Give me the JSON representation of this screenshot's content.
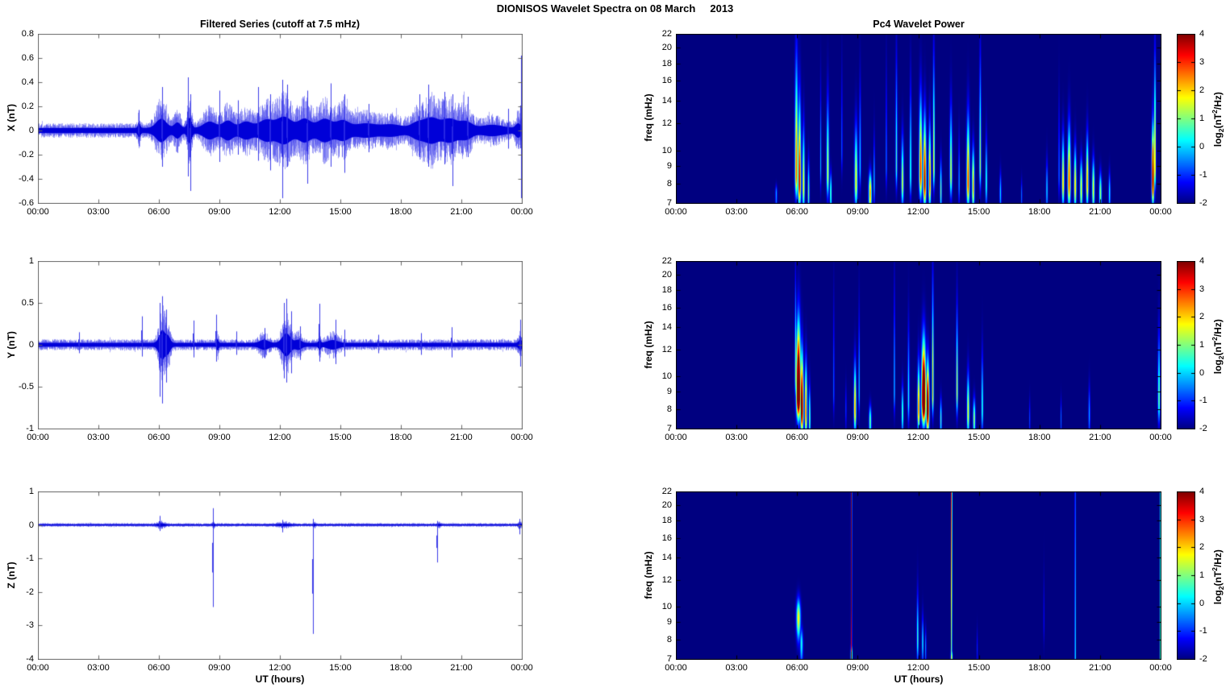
{
  "title": "DIONISOS Wavelet Spectra on 08 March     2013",
  "columns": {
    "left_title": "Filtered Series (cutoff at 7.5 mHz)",
    "right_title": "Pc4 Wavelet Power"
  },
  "xlabel": "UT (hours)",
  "x_tick_labels": [
    "00:00",
    "03:00",
    "06:00",
    "09:00",
    "12:00",
    "15:00",
    "18:00",
    "21:00",
    "00:00"
  ],
  "colorbar": {
    "ticks": [
      4,
      3,
      2,
      1,
      0,
      -1,
      -2
    ],
    "clim": [
      -2,
      4
    ],
    "colormap": "jet",
    "label_parts": {
      "pre": "log",
      "sub": "2",
      "mid": "(nT",
      "sup": "2",
      "post": "/Hz)"
    },
    "label_plain": "log2(nT^2/Hz)"
  },
  "palette": {
    "trace_blue": "#0000dd",
    "spectrogram_background": "#000080",
    "axis_gray": "#666666"
  },
  "chart_data": [
    {
      "type": "line",
      "position": "row1-left",
      "title": "Filtered Series (cutoff at 7.5 mHz)",
      "ylabel": "X (nT)",
      "ylim": [
        -0.6,
        0.8
      ],
      "yticks": [
        0.8,
        0.6,
        0.4,
        0.2,
        0,
        -0.2,
        -0.4,
        -0.6
      ],
      "xlim_hours": [
        0,
        24
      ],
      "noise_base_nT": 0.055,
      "bursts_t_sigma_amp": [
        [
          5.0,
          0.06,
          0.1
        ],
        [
          6.1,
          0.25,
          0.2
        ],
        [
          6.9,
          0.15,
          0.12
        ],
        [
          7.5,
          0.1,
          0.22
        ],
        [
          8.5,
          0.3,
          0.14
        ],
        [
          9.4,
          0.25,
          0.16
        ],
        [
          10.3,
          0.3,
          0.14
        ],
        [
          11.3,
          0.35,
          0.18
        ],
        [
          12.2,
          0.35,
          0.24
        ],
        [
          13.2,
          0.3,
          0.2
        ],
        [
          14.2,
          0.35,
          0.2
        ],
        [
          15.1,
          0.3,
          0.16
        ],
        [
          16.2,
          0.5,
          0.1
        ],
        [
          17.5,
          0.5,
          0.08
        ],
        [
          18.8,
          0.3,
          0.12
        ],
        [
          19.5,
          0.35,
          0.22
        ],
        [
          20.4,
          0.35,
          0.2
        ],
        [
          21.2,
          0.3,
          0.14
        ],
        [
          22.5,
          0.5,
          0.07
        ],
        [
          23.8,
          0.12,
          0.1
        ]
      ],
      "spikes_t_up_down": [
        [
          5.0,
          0.17,
          -0.13
        ],
        [
          6.15,
          0.36,
          -0.3
        ],
        [
          7.45,
          0.44,
          -0.38
        ],
        [
          7.55,
          0.3,
          -0.5
        ],
        [
          9.0,
          0.33,
          -0.26
        ],
        [
          9.9,
          0.25,
          -0.2
        ],
        [
          10.9,
          0.36,
          -0.25
        ],
        [
          11.5,
          0.3,
          -0.33
        ],
        [
          12.1,
          0.42,
          -0.56
        ],
        [
          12.35,
          0.38,
          -0.3
        ],
        [
          13.35,
          0.33,
          -0.44
        ],
        [
          14.5,
          0.39,
          -0.3
        ],
        [
          15.2,
          0.3,
          -0.35
        ],
        [
          16.4,
          0.22,
          -0.18
        ],
        [
          18.9,
          0.3,
          -0.22
        ],
        [
          19.35,
          0.38,
          -0.3
        ],
        [
          20.15,
          0.32,
          -0.28
        ],
        [
          20.55,
          0.3,
          -0.46
        ],
        [
          21.3,
          0.28,
          -0.22
        ],
        [
          23.3,
          0.18,
          -0.15
        ],
        [
          23.95,
          0.62,
          -0.56
        ]
      ]
    },
    {
      "type": "line",
      "position": "row2-left",
      "ylabel": "Y (nT)",
      "ylim": [
        -1,
        1
      ],
      "yticks": [
        1,
        0.5,
        0,
        -0.5,
        -1
      ],
      "xlim_hours": [
        0,
        24
      ],
      "noise_base_nT": 0.06,
      "bursts_t_sigma_amp": [
        [
          6.15,
          0.15,
          0.4
        ],
        [
          6.45,
          0.1,
          0.18
        ],
        [
          8.9,
          0.04,
          0.12
        ],
        [
          11.2,
          0.2,
          0.1
        ],
        [
          12.3,
          0.2,
          0.3
        ],
        [
          12.9,
          0.15,
          0.1
        ],
        [
          13.95,
          0.05,
          0.12
        ],
        [
          14.6,
          0.25,
          0.09
        ],
        [
          23.9,
          0.08,
          0.1
        ]
      ],
      "spikes_t_up_down": [
        [
          2.05,
          0.15,
          -0.1
        ],
        [
          5.15,
          0.34,
          -0.14
        ],
        [
          6.05,
          0.5,
          -0.62
        ],
        [
          6.15,
          0.58,
          -0.7
        ],
        [
          6.35,
          0.42,
          -0.45
        ],
        [
          7.7,
          0.29,
          -0.15
        ],
        [
          8.85,
          0.36,
          -0.2
        ],
        [
          9.85,
          0.16,
          -0.12
        ],
        [
          11.25,
          0.2,
          -0.16
        ],
        [
          12.2,
          0.5,
          -0.4
        ],
        [
          12.3,
          0.55,
          -0.45
        ],
        [
          12.55,
          0.4,
          -0.34
        ],
        [
          13.0,
          0.22,
          -0.18
        ],
        [
          13.95,
          0.49,
          -0.2
        ],
        [
          14.75,
          0.3,
          -0.23
        ],
        [
          15.2,
          0.18,
          -0.14
        ],
        [
          16.9,
          0.12,
          -0.1
        ],
        [
          19.0,
          0.14,
          -0.12
        ],
        [
          20.5,
          0.21,
          -0.15
        ],
        [
          23.92,
          0.3,
          -0.26
        ]
      ]
    },
    {
      "type": "line",
      "position": "row3-left",
      "ylabel": "Z (nT)",
      "ylim": [
        -4,
        1
      ],
      "yticks": [
        1,
        0,
        -1,
        -2,
        -3,
        -4
      ],
      "xlim_hours": [
        0,
        24
      ],
      "noise_base_nT": 0.05,
      "bursts_t_sigma_amp": [
        [
          6.1,
          0.15,
          0.08
        ],
        [
          8.7,
          0.04,
          0.08
        ],
        [
          12.2,
          0.25,
          0.05
        ],
        [
          13.7,
          0.04,
          0.06
        ],
        [
          19.9,
          0.06,
          0.05
        ],
        [
          23.9,
          0.08,
          0.06
        ]
      ],
      "spikes_t_up_down": [
        [
          6.05,
          0.27,
          -0.18
        ],
        [
          8.68,
          0.5,
          -2.45
        ],
        [
          12.1,
          0.15,
          -0.22
        ],
        [
          13.65,
          0.18,
          -3.25
        ],
        [
          19.78,
          0.12,
          -1.12
        ],
        [
          23.9,
          0.18,
          -0.28
        ]
      ]
    },
    {
      "type": "heatmap",
      "position": "row1-right",
      "title": "Pc4 Wavelet Power",
      "ylabel": "freq (mHz)",
      "freq_range_mHz": [
        7,
        22
      ],
      "freq_scale": "log",
      "yticks": [
        22,
        20,
        18,
        16,
        14,
        12,
        10,
        9,
        8,
        7
      ],
      "clim_log2_power": [
        -2,
        4
      ],
      "events_t_sigma_ftop_fpeak_power": [
        [
          4.95,
          0.03,
          8,
          7.5,
          1.2
        ],
        [
          5.95,
          0.05,
          22,
          8.5,
          3.2
        ],
        [
          6.1,
          0.05,
          16,
          8.0,
          3.8
        ],
        [
          6.3,
          0.04,
          13,
          7.8,
          2.6
        ],
        [
          6.55,
          0.03,
          10,
          7.5,
          2.0
        ],
        [
          7.15,
          0.02,
          18,
          9,
          1.2
        ],
        [
          7.5,
          0.04,
          16,
          8.5,
          2.4
        ],
        [
          7.65,
          0.03,
          9,
          7.5,
          2.0
        ],
        [
          8.2,
          0.02,
          20,
          10,
          1.0
        ],
        [
          8.9,
          0.05,
          13,
          8,
          2.6
        ],
        [
          9.1,
          0.03,
          18,
          9,
          1.4
        ],
        [
          9.6,
          0.05,
          9,
          7.5,
          3.0
        ],
        [
          9.8,
          0.02,
          12,
          8,
          1.6
        ],
        [
          10.4,
          0.02,
          20,
          9,
          1.2
        ],
        [
          10.9,
          0.03,
          22,
          9,
          1.8
        ],
        [
          11.2,
          0.04,
          12,
          8,
          2.4
        ],
        [
          11.6,
          0.03,
          18,
          8.5,
          1.8
        ],
        [
          12.1,
          0.05,
          16,
          8.5,
          3.6
        ],
        [
          12.3,
          0.05,
          14,
          8,
          4.0
        ],
        [
          12.55,
          0.04,
          13,
          8,
          3.4
        ],
        [
          12.75,
          0.03,
          22,
          9,
          2.6
        ],
        [
          13.1,
          0.03,
          10,
          7.6,
          2.0
        ],
        [
          13.6,
          0.04,
          15,
          8.5,
          2.4
        ],
        [
          14.0,
          0.02,
          12,
          8,
          1.4
        ],
        [
          14.45,
          0.05,
          14,
          8,
          3.4
        ],
        [
          14.7,
          0.04,
          11,
          7.8,
          3.0
        ],
        [
          15.05,
          0.03,
          22,
          9,
          2.2
        ],
        [
          15.35,
          0.03,
          12,
          8,
          1.8
        ],
        [
          16.05,
          0.03,
          9,
          7.5,
          1.4
        ],
        [
          17.1,
          0.02,
          8.5,
          7.4,
          1.0
        ],
        [
          18.35,
          0.03,
          10,
          7.6,
          1.4
        ],
        [
          18.95,
          0.02,
          16,
          8.5,
          1.2
        ],
        [
          19.15,
          0.04,
          12,
          8,
          2.8
        ],
        [
          19.45,
          0.05,
          13,
          8,
          3.4
        ],
        [
          19.75,
          0.04,
          11,
          7.8,
          2.8
        ],
        [
          20.05,
          0.04,
          10,
          7.7,
          2.6
        ],
        [
          20.35,
          0.04,
          12,
          8,
          3.0
        ],
        [
          20.65,
          0.04,
          10,
          7.7,
          2.6
        ],
        [
          21.0,
          0.04,
          9,
          7.5,
          2.2
        ],
        [
          21.45,
          0.03,
          9,
          7.5,
          1.6
        ],
        [
          23.6,
          0.04,
          13,
          8.2,
          5.0
        ],
        [
          23.7,
          0.03,
          22,
          9,
          3.0
        ]
      ],
      "vertical_lines_t_sigma_vtop_vbot": []
    },
    {
      "type": "heatmap",
      "position": "row2-right",
      "ylabel": "freq (mHz)",
      "freq_range_mHz": [
        7,
        22
      ],
      "freq_scale": "log",
      "yticks": [
        22,
        20,
        18,
        16,
        14,
        12,
        10,
        9,
        8,
        7
      ],
      "clim_log2_power": [
        -2,
        4
      ],
      "events_t_sigma_ftop_fpeak_power": [
        [
          5.9,
          0.02,
          22,
          10,
          2.4
        ],
        [
          6.05,
          0.07,
          16,
          8.8,
          6.0
        ],
        [
          6.22,
          0.05,
          13,
          8,
          5.0
        ],
        [
          6.42,
          0.04,
          12,
          7.8,
          3.4
        ],
        [
          6.6,
          0.03,
          10,
          7.5,
          2.2
        ],
        [
          7.8,
          0.02,
          20,
          9,
          1.0
        ],
        [
          8.4,
          0.02,
          10,
          8,
          0.8
        ],
        [
          8.85,
          0.04,
          12,
          8,
          3.0
        ],
        [
          9.05,
          0.02,
          18,
          9,
          1.6
        ],
        [
          9.6,
          0.04,
          8.5,
          7.4,
          2.0
        ],
        [
          10.8,
          0.02,
          22,
          9,
          1.6
        ],
        [
          11.2,
          0.03,
          10,
          7.8,
          2.0
        ],
        [
          11.5,
          0.03,
          16,
          8.5,
          1.6
        ],
        [
          12.0,
          0.04,
          12,
          8,
          3.2
        ],
        [
          12.25,
          0.07,
          14,
          8.5,
          6.0
        ],
        [
          12.45,
          0.05,
          12,
          8,
          5.0
        ],
        [
          12.7,
          0.03,
          22,
          9,
          2.8
        ],
        [
          13.1,
          0.03,
          9,
          7.5,
          1.8
        ],
        [
          13.9,
          0.03,
          18,
          9,
          2.4
        ],
        [
          14.45,
          0.04,
          11,
          7.8,
          2.6
        ],
        [
          14.75,
          0.04,
          9,
          7.5,
          2.2
        ],
        [
          15.15,
          0.03,
          13,
          8,
          1.8
        ],
        [
          17.5,
          0.02,
          9,
          7.5,
          0.8
        ],
        [
          19.05,
          0.02,
          9,
          7.5,
          0.9
        ],
        [
          20.45,
          0.03,
          10,
          7.7,
          1.2
        ],
        [
          23.9,
          0.04,
          15,
          8.5,
          2.0
        ]
      ],
      "vertical_lines_t_sigma_vtop_vbot": []
    },
    {
      "type": "heatmap",
      "position": "row3-right",
      "ylabel": "freq (mHz)",
      "freq_range_mHz": [
        7,
        22
      ],
      "freq_scale": "log",
      "yticks": [
        22,
        20,
        18,
        16,
        14,
        12,
        10,
        9,
        8,
        7
      ],
      "clim_log2_power": [
        -2,
        4
      ],
      "events_t_sigma_ftop_fpeak_power": [
        [
          6.05,
          0.07,
          11,
          9.3,
          2.6
        ],
        [
          6.2,
          0.05,
          9,
          7.8,
          1.6
        ],
        [
          11.95,
          0.03,
          12,
          8,
          1.8
        ],
        [
          12.2,
          0.03,
          10,
          7.8,
          1.5
        ],
        [
          12.35,
          0.02,
          9,
          7.6,
          1.2
        ],
        [
          14.9,
          0.02,
          9,
          7.5,
          0.6
        ],
        [
          18.2,
          0.02,
          14,
          9,
          0.5
        ],
        [
          8.67,
          0.025,
          7.9,
          7.2,
          4.4
        ],
        [
          13.63,
          0.03,
          7.6,
          7.1,
          2.6
        ]
      ],
      "vertical_lines_t_sigma_vtop_vbot": [
        [
          8.67,
          0.018,
          5.3,
          3.6
        ],
        [
          13.63,
          0.018,
          4.5,
          2.4
        ],
        [
          19.75,
          0.015,
          1.4,
          2.6
        ],
        [
          23.98,
          0.02,
          2.2,
          2.8
        ]
      ]
    }
  ]
}
